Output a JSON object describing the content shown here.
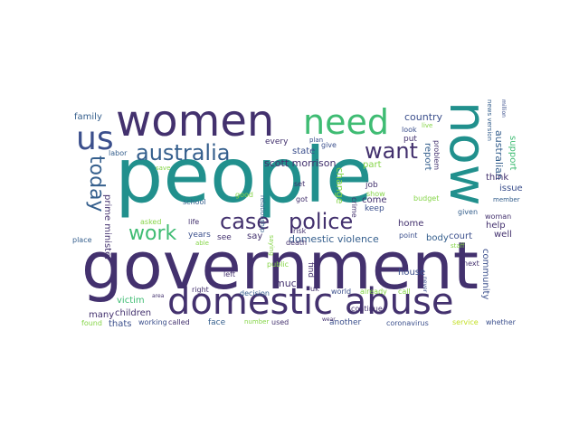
{
  "words": [
    {
      "text": "people",
      "color": "#21908d"
    },
    {
      "text": "government",
      "color": "#43316e"
    },
    {
      "text": "women",
      "color": "#43316e"
    },
    {
      "text": "now",
      "color": "#21908d"
    },
    {
      "text": "domestic abuse",
      "color": "#43316e"
    },
    {
      "text": "need",
      "color": "#3fbc73"
    },
    {
      "text": "us",
      "color": "#3b4f8c"
    },
    {
      "text": "australia",
      "color": "#355f8d"
    },
    {
      "text": "want",
      "color": "#43316e"
    },
    {
      "text": "today",
      "color": "#355f8d"
    },
    {
      "text": "case",
      "color": "#43316e"
    },
    {
      "text": "police",
      "color": "#43316e"
    },
    {
      "text": "work",
      "color": "#3fbc73"
    },
    {
      "text": "domestic violence",
      "color": "#355f8d"
    },
    {
      "text": "prime minister",
      "color": "#43316e"
    },
    {
      "text": "scott morrison",
      "color": "#43316e"
    },
    {
      "text": "country",
      "color": "#3b4f8c"
    },
    {
      "text": "australian",
      "color": "#355f8d"
    },
    {
      "text": "family",
      "color": "#355f8d"
    },
    {
      "text": "labor",
      "color": "#355f8d"
    },
    {
      "text": "every",
      "color": "#43316e"
    },
    {
      "text": "state",
      "color": "#3b4f8c"
    },
    {
      "text": "plan",
      "color": "#3b4f8c"
    },
    {
      "text": "give",
      "color": "#3b4f8c"
    },
    {
      "text": "look",
      "color": "#3b4f8c"
    },
    {
      "text": "put",
      "color": "#43316e"
    },
    {
      "text": "live",
      "color": "#86d549"
    },
    {
      "text": "news version",
      "color": "#355f8d"
    },
    {
      "text": "support",
      "color": "#3fbc73"
    },
    {
      "text": "report",
      "color": "#355f8d"
    },
    {
      "text": "problem",
      "color": "#43316e"
    },
    {
      "text": "part",
      "color": "#86d549"
    },
    {
      "text": "change",
      "color": "#86d549"
    },
    {
      "text": "think",
      "color": "#43316e"
    },
    {
      "text": "issue",
      "color": "#3b4f8c"
    },
    {
      "text": "court",
      "color": "#3b4f8c"
    },
    {
      "text": "help",
      "color": "#43316e"
    },
    {
      "text": "body",
      "color": "#355f8d"
    },
    {
      "text": "well",
      "color": "#43316e"
    },
    {
      "text": "woman",
      "color": "#43316e"
    },
    {
      "text": "home",
      "color": "#43316e"
    },
    {
      "text": "come",
      "color": "#43316e"
    },
    {
      "text": "keep",
      "color": "#3b4f8c"
    },
    {
      "text": "job",
      "color": "#43316e"
    },
    {
      "text": "show",
      "color": "#86d549"
    },
    {
      "text": "crime",
      "color": "#43316e"
    },
    {
      "text": "budget",
      "color": "#86d549"
    },
    {
      "text": "given",
      "color": "#355f8d"
    },
    {
      "text": "member",
      "color": "#355f8d"
    },
    {
      "text": "staff",
      "color": "#86d549"
    },
    {
      "text": "next",
      "color": "#43316e"
    },
    {
      "text": "point",
      "color": "#3b4f8c"
    },
    {
      "text": "set",
      "color": "#43316e"
    },
    {
      "text": "got",
      "color": "#43316e"
    },
    {
      "text": "good",
      "color": "#86d549"
    },
    {
      "text": "school",
      "color": "#355f8d"
    },
    {
      "text": "save",
      "color": "#86d549"
    },
    {
      "text": "asked",
      "color": "#86d549"
    },
    {
      "text": "life",
      "color": "#43316e"
    },
    {
      "text": "years",
      "color": "#3b4f8c"
    },
    {
      "text": "able",
      "color": "#86d549"
    },
    {
      "text": "see",
      "color": "#43316e"
    },
    {
      "text": "say",
      "color": "#43316e"
    },
    {
      "text": "risk",
      "color": "#43316e"
    },
    {
      "text": "death",
      "color": "#43316e"
    },
    {
      "text": "relationship",
      "color": "#355f8d"
    },
    {
      "text": "saying",
      "color": "#86d549"
    },
    {
      "text": "place",
      "color": "#355f8d"
    },
    {
      "text": "children",
      "color": "#43316e"
    },
    {
      "text": "victim",
      "color": "#3fbc73"
    },
    {
      "text": "many",
      "color": "#43316e"
    },
    {
      "text": "thats",
      "color": "#3b4f8c"
    },
    {
      "text": "found",
      "color": "#86d549"
    },
    {
      "text": "working",
      "color": "#3b4f8c"
    },
    {
      "text": "called",
      "color": "#43316e"
    },
    {
      "text": "face",
      "color": "#355f8d"
    },
    {
      "text": "right",
      "color": "#43316e"
    },
    {
      "text": "left",
      "color": "#43316e"
    },
    {
      "text": "decision",
      "color": "#355f8d"
    },
    {
      "text": "public",
      "color": "#86d549"
    },
    {
      "text": "much",
      "color": "#43316e"
    },
    {
      "text": "find",
      "color": "#43316e"
    },
    {
      "text": "uk",
      "color": "#43316e"
    },
    {
      "text": "used",
      "color": "#43316e"
    },
    {
      "text": "number",
      "color": "#86d549"
    },
    {
      "text": "another",
      "color": "#3b4f8c"
    },
    {
      "text": "continue",
      "color": "#43316e"
    },
    {
      "text": "coronavirus",
      "color": "#3b4f8c"
    },
    {
      "text": "world",
      "color": "#3b4f8c"
    },
    {
      "text": "already",
      "color": "#86d549"
    },
    {
      "text": "call",
      "color": "#86d549"
    },
    {
      "text": "house",
      "color": "#3b4f8c"
    },
    {
      "text": "community",
      "color": "#3b4f8c"
    },
    {
      "text": "service",
      "color": "#c2df23"
    },
    {
      "text": "whether",
      "color": "#3b4f8c"
    },
    {
      "text": "area",
      "color": "#43316e"
    },
    {
      "text": "never",
      "color": "#3b4f8c"
    },
    {
      "text": "million",
      "color": "#3b4f8c"
    },
    {
      "text": "wear",
      "color": "#43316e"
    }
  ]
}
